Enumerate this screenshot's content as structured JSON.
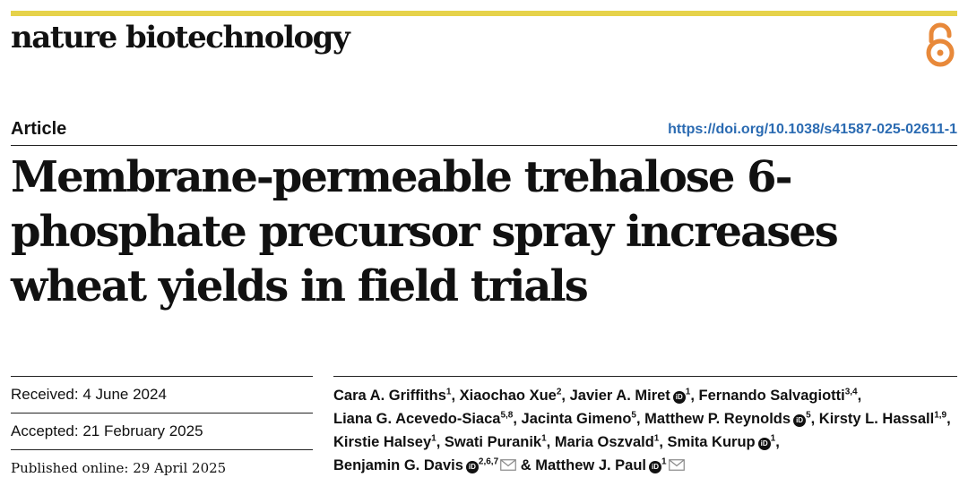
{
  "journal": {
    "name": "nature biotechnology"
  },
  "article": {
    "type": "Article",
    "doi": "https://doi.org/10.1038/s41587-025-02611-1",
    "title": "Membrane-permeable trehalose 6-phosphate precursor spray increases wheat yields in field trials"
  },
  "dates": {
    "received": "Received: 4 June 2024",
    "accepted": "Accepted: 21 February 2025",
    "published": "Published online: 29 April 2025"
  },
  "authors": [
    {
      "name": "Cara A. Griffiths",
      "sup": "1"
    },
    {
      "name": "Xiaochao Xue",
      "sup": "2"
    },
    {
      "name": "Javier A. Miret",
      "sup": "1",
      "orcid": "iD"
    },
    {
      "name": "Fernando Salvagiotti",
      "sup": "3,4"
    },
    {
      "name": "Liana G. Acevedo-Siaca",
      "sup": "5,8"
    },
    {
      "name": "Jacinta Gimeno",
      "sup": "5"
    },
    {
      "name": "Matthew P. Reynolds",
      "sup": "5",
      "orcid": "iD"
    },
    {
      "name": "Kirsty L. Hassall",
      "sup": "1,9"
    },
    {
      "name": "Kirstie Halsey",
      "sup": "1"
    },
    {
      "name": "Swati Puranik",
      "sup": "1"
    },
    {
      "name": "Maria Oszvald",
      "sup": "1"
    },
    {
      "name": "Smita Kurup",
      "sup": "1",
      "orcid": "iD"
    },
    {
      "name": "Benjamin G. Davis",
      "sup": "2,6,7",
      "orcid": "iD",
      "mail": true
    },
    {
      "name": "Matthew J. Paul",
      "sup": "1",
      "orcid": "iD",
      "mail": true,
      "prefix": "& "
    }
  ],
  "colors": {
    "topbar": "#e6d24a",
    "doi_link": "#2b6bb2",
    "open_access": "#e8893a"
  },
  "icons": {
    "open_access": "open-access-lock-icon",
    "orcid": "orcid-icon",
    "mail": "envelope-icon"
  }
}
